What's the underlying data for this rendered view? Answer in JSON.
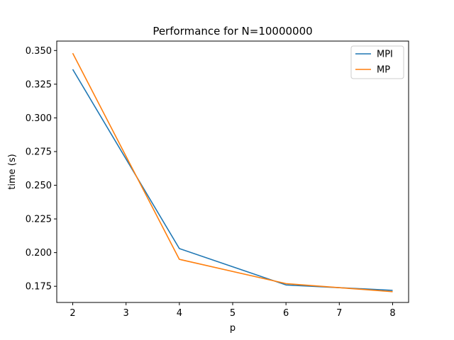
{
  "chart_data": {
    "type": "line",
    "title": "Performance for N=10000000",
    "xlabel": "p",
    "ylabel": "time (s)",
    "x": [
      2,
      4,
      6,
      8
    ],
    "xticks": [
      "2",
      "3",
      "4",
      "5",
      "6",
      "7",
      "8"
    ],
    "yticks": [
      "0.175",
      "0.200",
      "0.225",
      "0.250",
      "0.275",
      "0.300",
      "0.325",
      "0.350"
    ],
    "xlim": [
      1.7,
      8.3
    ],
    "ylim": [
      0.163,
      0.357
    ],
    "grid": false,
    "legend_position": "top-right",
    "series": [
      {
        "name": "MPI",
        "color": "#1f77b4",
        "values": [
          0.336,
          0.203,
          0.176,
          0.172
        ]
      },
      {
        "name": "MP",
        "color": "#ff7f0e",
        "values": [
          0.348,
          0.195,
          0.177,
          0.171
        ]
      }
    ]
  }
}
